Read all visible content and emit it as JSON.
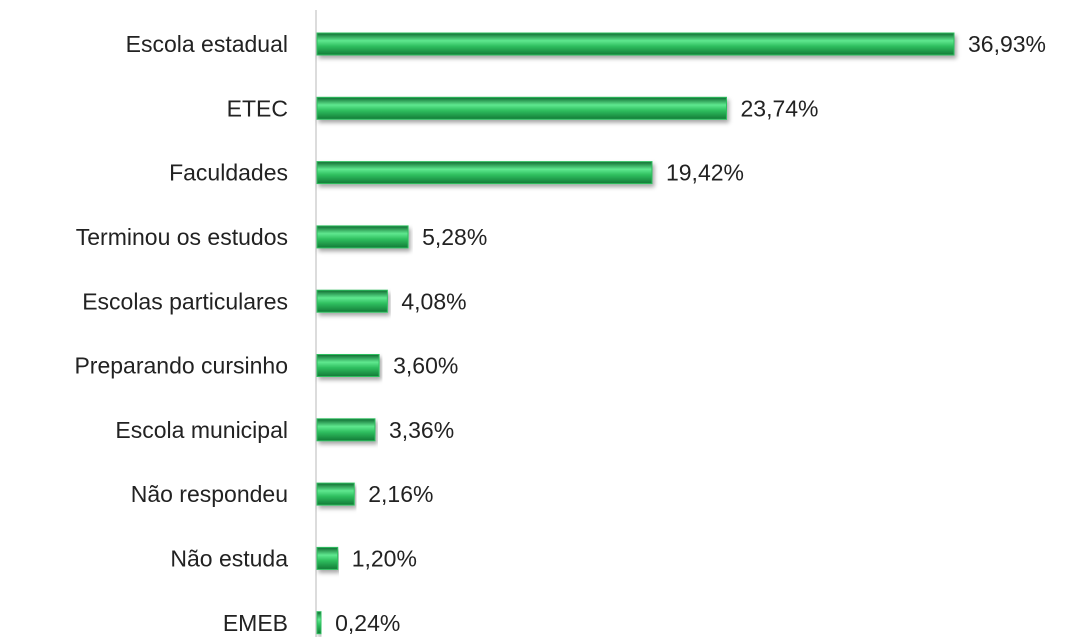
{
  "chart_data": {
    "type": "hbar",
    "categories": [
      "Escola estadual",
      "ETEC",
      "Faculdades",
      "Terminou os estudos",
      "Escolas particulares",
      "Preparando cursinho",
      "Escola municipal",
      "Não respondeu",
      "Não estuda",
      "EMEB"
    ],
    "values": [
      36.93,
      23.74,
      19.42,
      5.28,
      4.08,
      3.6,
      3.36,
      2.16,
      1.2,
      0.24
    ],
    "value_labels": [
      "36,93%",
      "23,74%",
      "19,42%",
      "5,28%",
      "4,08%",
      "3,60%",
      "3,36%",
      "2,16%",
      "1,20%",
      "0,24%"
    ],
    "color": "#2fbf5f"
  }
}
